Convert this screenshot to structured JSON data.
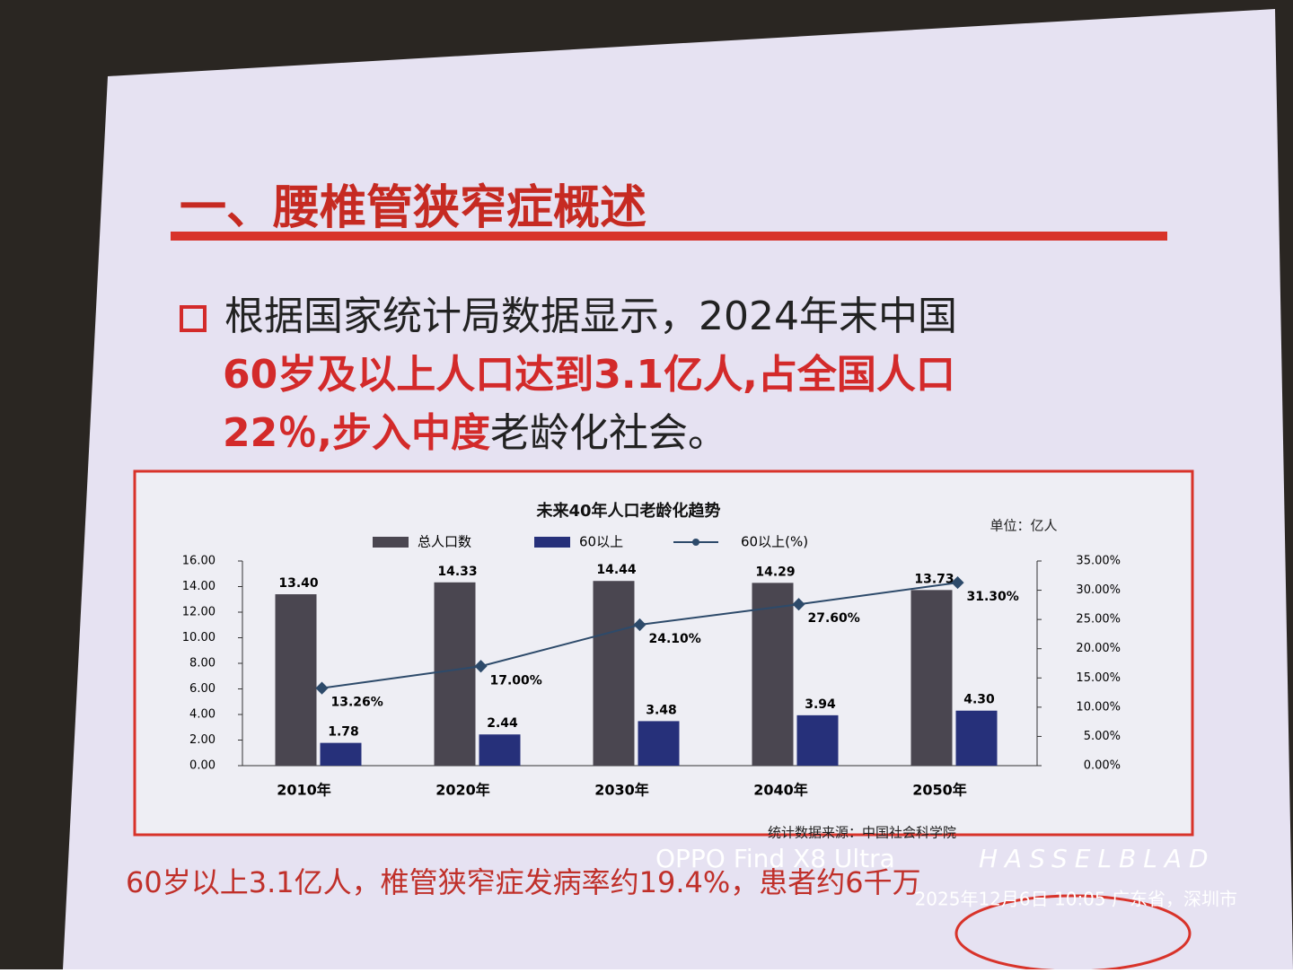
{
  "slide": {
    "title": "一、腰椎管狭窄症概述",
    "bullet": [
      [
        {
          "text": "根据国家统计局数据显示，2024年末中国",
          "color": "#222222"
        }
      ],
      [
        {
          "text": "60岁及以上人口达到3.1亿人,占全国人口",
          "color": "#d32a2a"
        }
      ],
      [
        {
          "text": "22％,步入中度",
          "color": "#d32a2a"
        },
        {
          "text": "老龄化社会。",
          "color": "#222222"
        }
      ]
    ],
    "note": "60岁以上3.1亿人，椎管狭窄症发病率约19.4%，患者约6千万"
  },
  "camera": {
    "model": "OPPO Find X8 Ultra",
    "brand": "HASSELBLAD",
    "info": "2025年12月6日 10:05  广东省，深圳市"
  },
  "chart_data": {
    "type": "bar",
    "title": "未来40年人口老龄化趋势",
    "unit": "单位：亿人",
    "source": "统计数据来源：中国社会科学院",
    "categories": [
      "2010年",
      "2020年",
      "2030年",
      "2040年",
      "2050年"
    ],
    "series": [
      {
        "name": "总人口数",
        "color": "#4a4650",
        "values": [
          13.4,
          14.33,
          14.44,
          14.29,
          13.73
        ],
        "value_labels": [
          "13.40",
          "14.33",
          "14.44",
          "14.29",
          "13.73"
        ]
      },
      {
        "name": "60以上",
        "color": "#26307a",
        "values": [
          1.78,
          2.44,
          3.48,
          3.94,
          4.3
        ],
        "value_labels": [
          "1.78",
          "2.44",
          "3.48",
          "3.94",
          "4.30"
        ]
      },
      {
        "name": "60以上(%)",
        "color": "#2d4a6a",
        "type": "line",
        "axis": "y2",
        "values": [
          13.26,
          17,
          24.1,
          27.6,
          31.3
        ],
        "value_labels": [
          "13.26%",
          "17.00%",
          "24.10%",
          "27.60%",
          "31.30%"
        ]
      }
    ],
    "ylim": [
      0,
      16
    ],
    "yticks": [
      {
        "value": 0,
        "label": "0.00"
      },
      {
        "value": 2,
        "label": "2.00"
      },
      {
        "value": 4,
        "label": "4.00"
      },
      {
        "value": 6,
        "label": "6.00"
      },
      {
        "value": 8,
        "label": "8.00"
      },
      {
        "value": 10,
        "label": "10.00"
      },
      {
        "value": 12,
        "label": "12.00"
      },
      {
        "value": 14,
        "label": "14.00"
      },
      {
        "value": 16,
        "label": "16.00"
      }
    ],
    "y2lim": [
      0,
      35
    ],
    "y2ticks": [
      {
        "value": 0,
        "label": "0.00%"
      },
      {
        "value": 5,
        "label": "5.00%"
      },
      {
        "value": 10,
        "label": "10.00%"
      },
      {
        "value": 15,
        "label": "15.00%"
      },
      {
        "value": 20,
        "label": "20.00%"
      },
      {
        "value": 25,
        "label": "25.00%"
      },
      {
        "value": 30,
        "label": "30.00%"
      },
      {
        "value": 35,
        "label": "35.00%"
      }
    ]
  }
}
